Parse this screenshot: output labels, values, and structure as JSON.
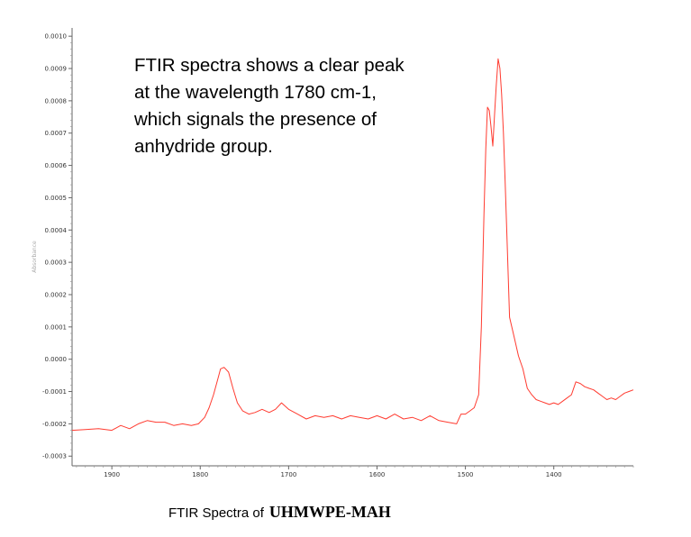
{
  "chart_data": {
    "type": "line",
    "title": "",
    "xlabel": "",
    "ylabel": "Absorbance",
    "xlim": [
      1945,
      1310
    ],
    "ylim": [
      -0.00033,
      0.00102
    ],
    "x_reversed": true,
    "grid": false,
    "x_ticks": [
      1900,
      1800,
      1700,
      1600,
      1500,
      1400
    ],
    "x_tick_labels": [
      "1900",
      "1800",
      "1700",
      "1600",
      "1500",
      "1400"
    ],
    "y_ticks": [
      0.001,
      0.0009,
      0.0008,
      0.0007,
      0.0006,
      0.0005,
      0.0004,
      0.0003,
      0.0002,
      0.0001,
      0.0,
      -0.0001,
      -0.0002,
      -0.0003
    ],
    "y_tick_labels": [
      "0.0010",
      "0.0009",
      "0.0008",
      "0.0007",
      "0.0006",
      "0.0005",
      "0.0004",
      "0.0003",
      "0.0002",
      "0.0001",
      "0.0000",
      "-0.0001",
      "-0.0002",
      "-0.0003"
    ],
    "series": [
      {
        "color": "#ff3b30",
        "x": [
          1945,
          1930,
          1915,
          1900,
          1890,
          1880,
          1870,
          1860,
          1850,
          1840,
          1830,
          1820,
          1810,
          1802,
          1795,
          1790,
          1785,
          1780,
          1777,
          1773,
          1768,
          1763,
          1758,
          1752,
          1745,
          1738,
          1730,
          1722,
          1715,
          1708,
          1700,
          1690,
          1680,
          1670,
          1660,
          1650,
          1640,
          1630,
          1620,
          1610,
          1600,
          1590,
          1580,
          1570,
          1560,
          1550,
          1540,
          1530,
          1520,
          1510,
          1505,
          1500,
          1495,
          1490,
          1485,
          1482,
          1479,
          1477,
          1475,
          1473,
          1471,
          1469,
          1467,
          1465,
          1463,
          1461,
          1459,
          1457,
          1455,
          1453,
          1450,
          1445,
          1440,
          1435,
          1430,
          1425,
          1420,
          1415,
          1410,
          1405,
          1400,
          1395,
          1390,
          1385,
          1380,
          1375,
          1370,
          1365,
          1360,
          1355,
          1350,
          1345,
          1340,
          1335,
          1330,
          1325,
          1320,
          1315,
          1310
        ],
        "y": [
          -0.00022,
          -0.000218,
          -0.000215,
          -0.00022,
          -0.000205,
          -0.000215,
          -0.0002,
          -0.00019,
          -0.000195,
          -0.000195,
          -0.000205,
          -0.0002,
          -0.000205,
          -0.0002,
          -0.00018,
          -0.00015,
          -0.00011,
          -6e-05,
          -3e-05,
          -2.5e-05,
          -4e-05,
          -9e-05,
          -0.000135,
          -0.00016,
          -0.00017,
          -0.000165,
          -0.000155,
          -0.000165,
          -0.000155,
          -0.000135,
          -0.000155,
          -0.00017,
          -0.000185,
          -0.000175,
          -0.00018,
          -0.000175,
          -0.000185,
          -0.000175,
          -0.00018,
          -0.000185,
          -0.000175,
          -0.000185,
          -0.00017,
          -0.000185,
          -0.00018,
          -0.00019,
          -0.000175,
          -0.00019,
          -0.000195,
          -0.0002,
          -0.00017,
          -0.00017,
          -0.00016,
          -0.00015,
          -0.00011,
          0.0001,
          0.00045,
          0.00065,
          0.00078,
          0.00077,
          0.00072,
          0.00066,
          0.00076,
          0.00085,
          0.00093,
          0.0009,
          0.00082,
          0.0007,
          0.00055,
          0.00038,
          0.00013,
          7e-05,
          1e-05,
          -3e-05,
          -9e-05,
          -0.00011,
          -0.000125,
          -0.00013,
          -0.000135,
          -0.00014,
          -0.000135,
          -0.00014,
          -0.00013,
          -0.00012,
          -0.00011,
          -7e-05,
          -7.5e-05,
          -8.5e-05,
          -9e-05,
          -9.5e-05,
          -0.000105,
          -0.000115,
          -0.000125,
          -0.00012,
          -0.000125,
          -0.000115,
          -0.000105,
          -0.0001,
          -9.5e-05
        ]
      }
    ]
  },
  "annotation": {
    "text": "FTIR spectra shows a clear peak\nat the wavelength 1780 cm-1,\nwhich signals the presence of\nanhydride group."
  },
  "caption": {
    "prefix": "FTIR Spectra of",
    "bold": "UHMWPE-MAH"
  }
}
